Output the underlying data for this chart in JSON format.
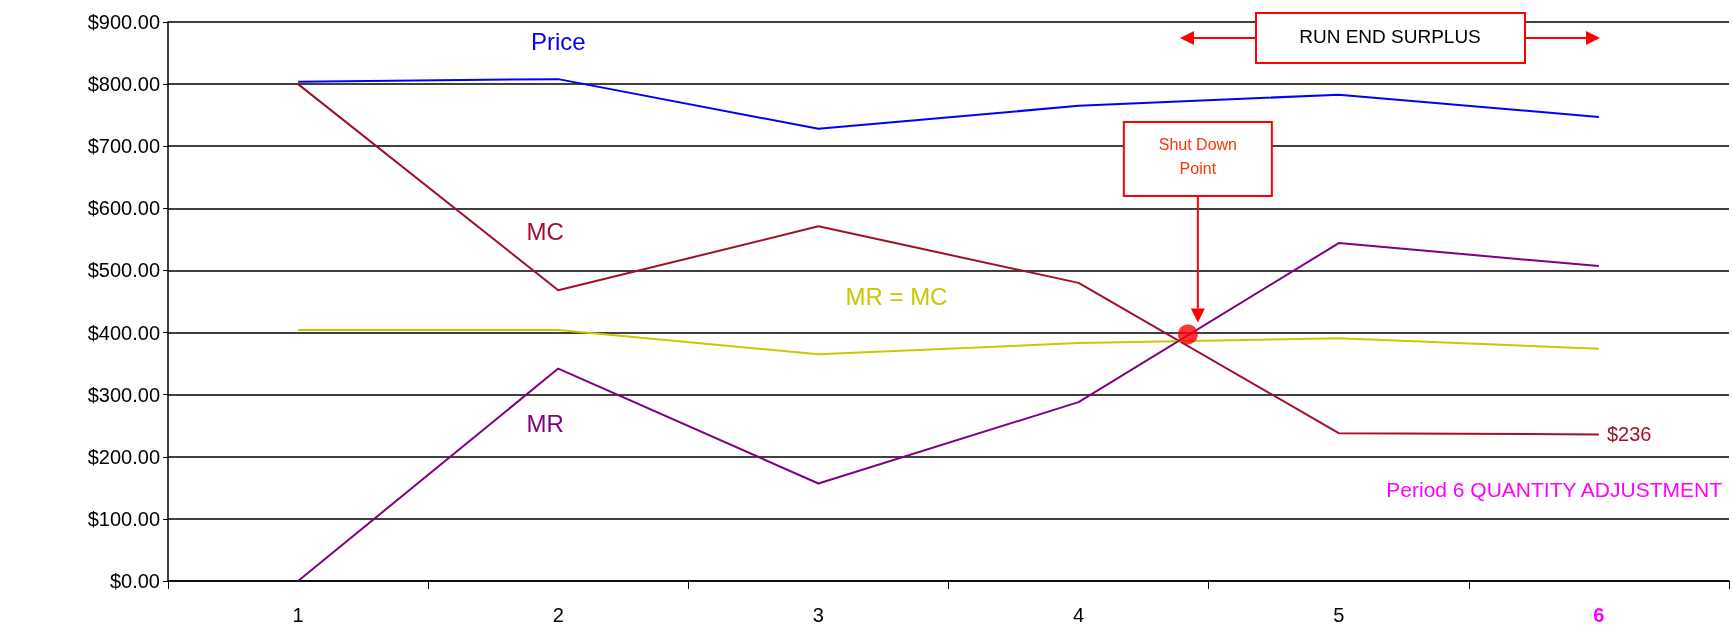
{
  "chart_data": {
    "type": "line",
    "x": [
      1,
      2,
      3,
      4,
      5,
      6
    ],
    "xlim": [
      0.5,
      6.5
    ],
    "xticks": [
      1,
      2,
      3,
      4,
      5,
      6
    ],
    "ylim": [
      0,
      900
    ],
    "yticks": [
      {
        "value": 0,
        "label": "$0.00"
      },
      {
        "value": 100,
        "label": "$100.00"
      },
      {
        "value": 200,
        "label": "$200.00"
      },
      {
        "value": 300,
        "label": "$300.00"
      },
      {
        "value": 400,
        "label": "$400.00"
      },
      {
        "value": 500,
        "label": "$500.00"
      },
      {
        "value": 600,
        "label": "$600.00"
      },
      {
        "value": 700,
        "label": "$700.00"
      },
      {
        "value": 800,
        "label": "$800.00"
      },
      {
        "value": 900,
        "label": "$900.00"
      }
    ],
    "grid": "y",
    "marker": "none",
    "line_style": "solid",
    "series": [
      {
        "name": "Price",
        "color": "#0000ff",
        "values": [
          804,
          808,
          728,
          765,
          783,
          747
        ]
      },
      {
        "name": "MC",
        "color": "#a0102a",
        "values": [
          800,
          468,
          571,
          480,
          238,
          236
        ],
        "value_labels": [
          null,
          null,
          null,
          null,
          null,
          "$236"
        ]
      },
      {
        "name": "MR = MC",
        "color": "#c8c800",
        "values": [
          404,
          404,
          365,
          383,
          391,
          374
        ]
      },
      {
        "name": "MR",
        "color": "#800080",
        "values": [
          0,
          342,
          157,
          288,
          544,
          507
        ]
      },
      {
        "type": "scatter",
        "color": "#ff0000",
        "x": [
          4.42
        ],
        "values": [
          397
        ],
        "marker": "circle"
      }
    ],
    "annotations": [
      "Shut Down Point",
      "RUN END SURPLUS",
      "Period 6 QUANTITY ADJUSTMENT"
    ]
  }
}
